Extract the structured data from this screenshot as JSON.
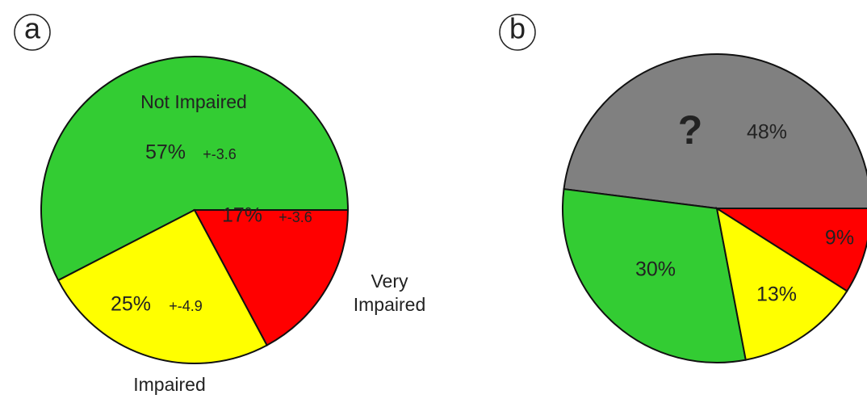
{
  "chart_data": [
    {
      "type": "pie",
      "title": "a",
      "categories": [
        "Not Impaired",
        "Impaired",
        "Very Impaired"
      ],
      "values": [
        57,
        25,
        17
      ],
      "value_labels": [
        "57%",
        "25%",
        "17%"
      ],
      "errors": [
        3.6,
        4.9,
        3.6
      ],
      "error_labels": [
        "+-3.6",
        "+-4.9",
        "+-3.6"
      ],
      "colors": [
        "#33cc33",
        "#ffff00",
        "#ff0000"
      ]
    },
    {
      "type": "pie",
      "title": "b",
      "categories": [
        "?",
        null,
        null,
        null
      ],
      "values": [
        48,
        30,
        13,
        9
      ],
      "value_labels": [
        "48%",
        "30%",
        "13%",
        "9%"
      ],
      "colors": [
        "#808080",
        "#33cc33",
        "#ffff00",
        "#ff0000"
      ]
    }
  ]
}
